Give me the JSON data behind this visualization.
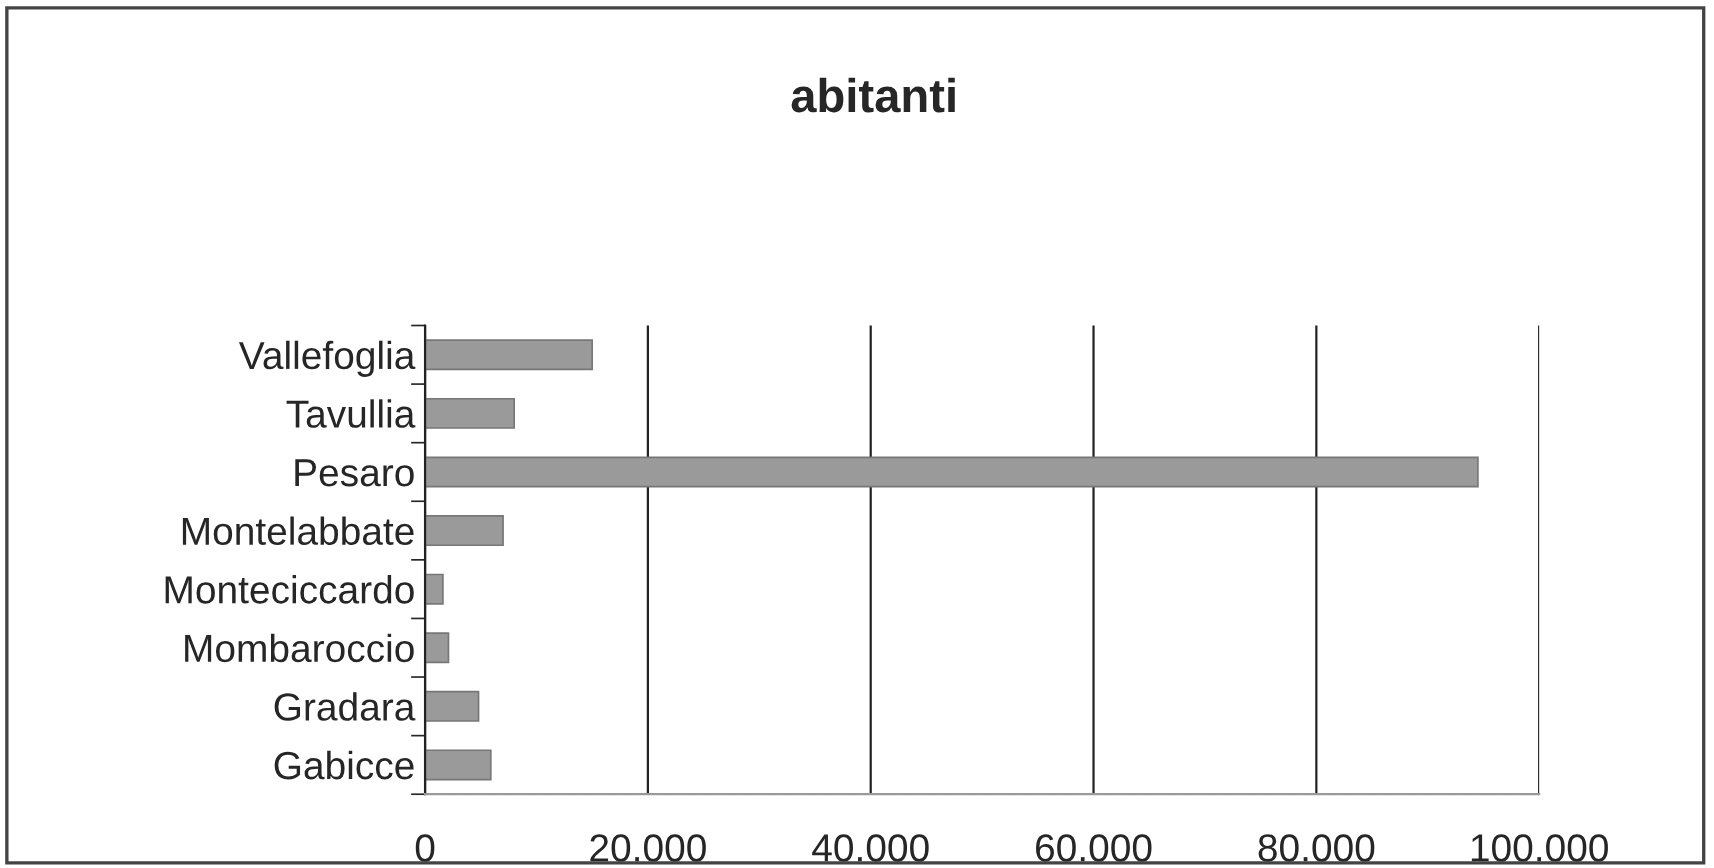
{
  "chart_data": {
    "type": "bar",
    "orientation": "horizontal",
    "title": "abitanti",
    "categories": [
      "Vallefoglia",
      "Tavullia",
      "Pesaro",
      "Montelabbate",
      "Monteciccardo",
      "Mombaroccio",
      "Gradara",
      "Gabicce"
    ],
    "values": [
      15000,
      8000,
      94500,
      7000,
      1600,
      2100,
      4800,
      5900
    ],
    "color": "#9a9a9a",
    "xlim": [
      0,
      100000
    ],
    "xticks": [
      0,
      {
        "value": 20000,
        "label": "20.000"
      },
      {
        "value": 40000,
        "label": "40.000"
      },
      {
        "value": 60000,
        "label": "60.000"
      },
      {
        "value": 80000,
        "label": "80.000"
      },
      {
        "value": 100000,
        "label": "100.000"
      }
    ],
    "grid": "x",
    "legend": false
  }
}
